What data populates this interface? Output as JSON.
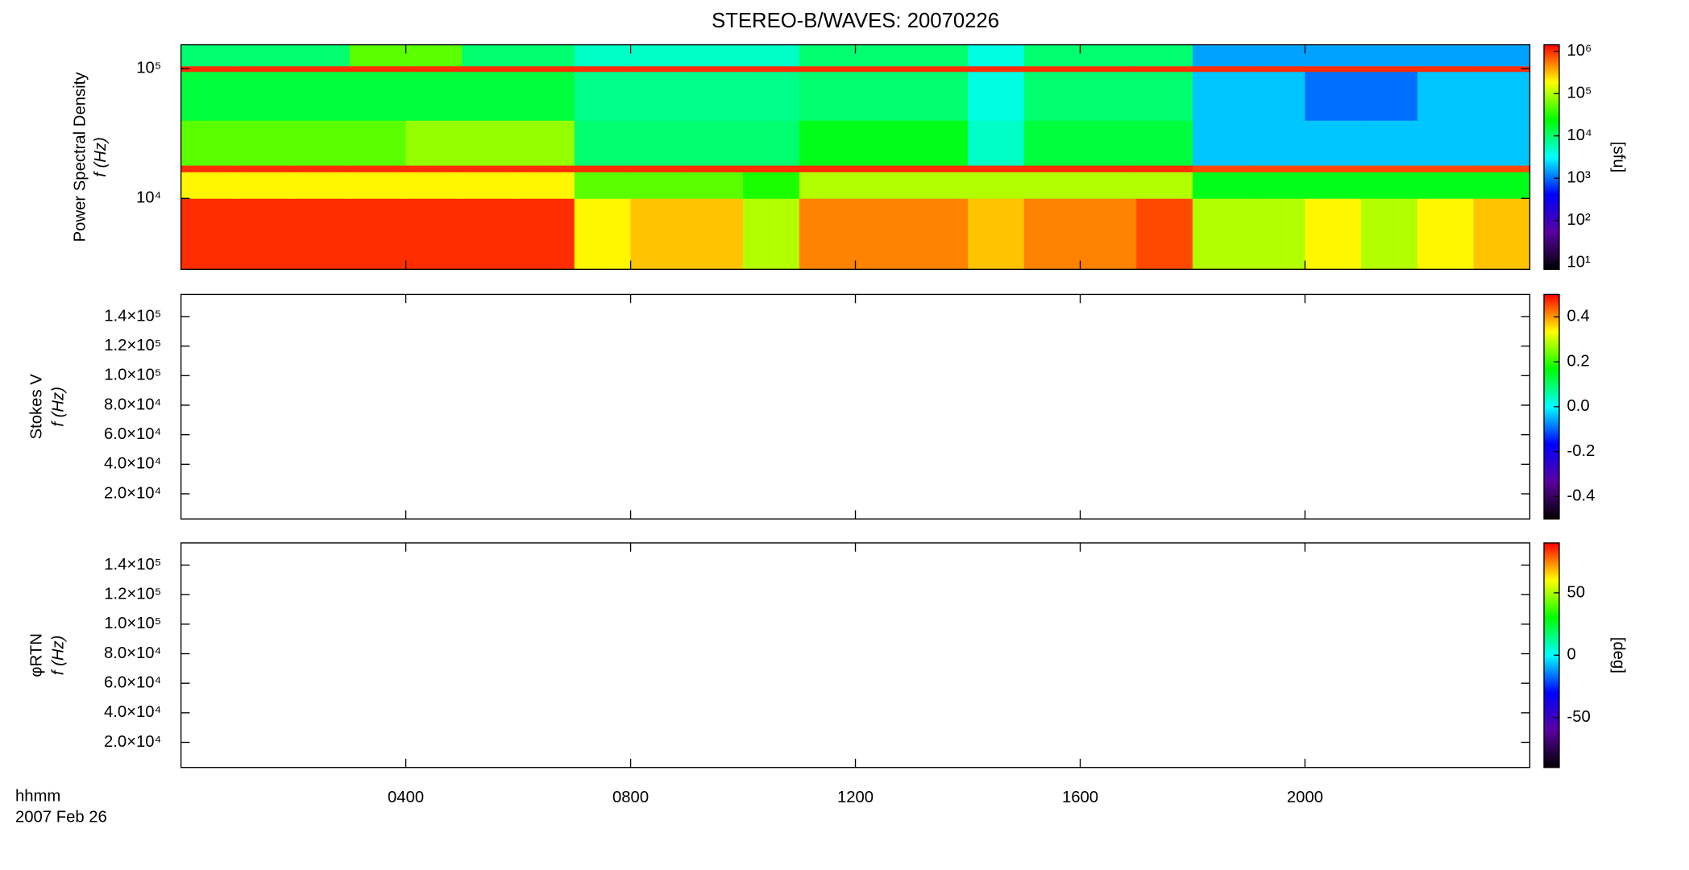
{
  "chart_data": [
    {
      "type": "heatmap",
      "title": "STEREO-B/WAVES: 20070226",
      "ylabel": [
        "Power Spectral Density",
        "f (Hz)"
      ],
      "xlim": [
        0,
        24
      ],
      "ylim": [
        2840,
        153000
      ],
      "ylog": true,
      "x": [
        0,
        1,
        2,
        3,
        4,
        5,
        6,
        7,
        8,
        9,
        10,
        11,
        12,
        13,
        14,
        15,
        16,
        17,
        18,
        19,
        20,
        21,
        22,
        23,
        24
      ],
      "ybins": [
        2840,
        10000,
        16000,
        18000,
        40000,
        95000,
        105000,
        153000
      ],
      "yticks": [
        {
          "value": 10000,
          "label": "10⁴"
        },
        {
          "value": 100000,
          "label": "10⁵"
        }
      ],
      "values": [
        [
          1000000,
          1000000,
          1000000,
          1000000,
          1000000,
          1000000,
          1000000,
          200000,
          300000,
          300000,
          100000,
          500000,
          500000,
          500000,
          300000,
          500000,
          500000,
          800000,
          100000,
          100000,
          200000,
          100000,
          200000,
          300000
        ],
        [
          200000,
          200000,
          200000,
          200000,
          200000,
          200000,
          200000,
          50000,
          50000,
          50000,
          30000,
          100000,
          100000,
          100000,
          100000,
          100000,
          100000,
          100000,
          20000,
          20000,
          20000,
          20000,
          20000,
          20000
        ],
        [
          1000000,
          1000000,
          1000000,
          1000000,
          1000000,
          1000000,
          1000000,
          1000000,
          1000000,
          1000000,
          1000000,
          1000000,
          1000000,
          1000000,
          1000000,
          1000000,
          1000000,
          1000000,
          800000,
          800000,
          800000,
          800000,
          800000,
          800000
        ],
        [
          50000,
          50000,
          50000,
          50000,
          80000,
          80000,
          80000,
          10000,
          10000,
          10000,
          10000,
          20000,
          20000,
          20000,
          5000,
          15000,
          15000,
          15000,
          2000,
          2000,
          2000,
          2000,
          2000,
          2000
        ],
        [
          15000,
          15000,
          15000,
          15000,
          15000,
          15000,
          15000,
          8000,
          8000,
          8000,
          8000,
          10000,
          10000,
          10000,
          4000,
          10000,
          10000,
          10000,
          2000,
          2000,
          1000,
          1000,
          2000,
          2000
        ],
        [
          1000000,
          1000000,
          1000000,
          1000000,
          1000000,
          1000000,
          1000000,
          1000000,
          1000000,
          1000000,
          1000000,
          1000000,
          1000000,
          1000000,
          1000000,
          1000000,
          1000000,
          1000000,
          1000000,
          1000000,
          1000000,
          1000000,
          1000000,
          1000000
        ],
        [
          10000,
          10000,
          10000,
          50000,
          50000,
          10000,
          10000,
          5000,
          5000,
          5000,
          5000,
          10000,
          10000,
          10000,
          4000,
          10000,
          10000,
          10000,
          1500,
          1500,
          1500,
          1500,
          1500,
          1500
        ]
      ],
      "colormap": [
        "#000000",
        "#5a00a0",
        "#0000ff",
        "#00ffff",
        "#00ff00",
        "#ffff00",
        "#ff0000"
      ],
      "clim": [
        7,
        1430000
      ],
      "clog": true,
      "cticks": [
        {
          "value": 10,
          "label": "10¹"
        },
        {
          "value": 100,
          "label": "10²"
        },
        {
          "value": 1000,
          "label": "10³"
        },
        {
          "value": 10000,
          "label": "10⁴"
        },
        {
          "value": 100000,
          "label": "10⁵"
        },
        {
          "value": 1000000,
          "label": "10⁶"
        }
      ],
      "clabel": "[sfu]"
    },
    {
      "type": "heatmap",
      "ylabel": [
        "Stokes V",
        "f (Hz)"
      ],
      "xlim": [
        0,
        24
      ],
      "ylim": [
        3000,
        155000
      ],
      "yticks": [
        {
          "value": 20000,
          "label": "2.0×10⁴"
        },
        {
          "value": 40000,
          "label": "4.0×10⁴"
        },
        {
          "value": 60000,
          "label": "6.0×10⁴"
        },
        {
          "value": 80000,
          "label": "8.0×10⁴"
        },
        {
          "value": 100000,
          "label": "1.0×10⁵"
        },
        {
          "value": 120000,
          "label": "1.2×10⁵"
        },
        {
          "value": 140000,
          "label": "1.4×10⁵"
        }
      ],
      "colormap": [
        "#000000",
        "#5a00a0",
        "#0000ff",
        "#00ffff",
        "#00ff00",
        "#ffff00",
        "#ff0000"
      ],
      "clim": [
        -0.5,
        0.5
      ],
      "cticks": [
        -0.4,
        -0.2,
        {
          "value": 0,
          "label": "0.0"
        },
        0.2,
        0.4
      ]
    },
    {
      "type": "heatmap",
      "ylabel": [
        "φRTN",
        "f (Hz)"
      ],
      "xlim": [
        0,
        24
      ],
      "ylim": [
        3000,
        155000
      ],
      "yticks": [
        {
          "value": 20000,
          "label": "2.0×10⁴"
        },
        {
          "value": 40000,
          "label": "4.0×10⁴"
        },
        {
          "value": 60000,
          "label": "6.0×10⁴"
        },
        {
          "value": 80000,
          "label": "8.0×10⁴"
        },
        {
          "value": 100000,
          "label": "1.0×10⁵"
        },
        {
          "value": 120000,
          "label": "1.2×10⁵"
        },
        {
          "value": 140000,
          "label": "1.4×10⁵"
        }
      ],
      "xticks": [
        {
          "value": 4,
          "label": "0400"
        },
        {
          "value": 8,
          "label": "0800"
        },
        {
          "value": 12,
          "label": "1200"
        },
        {
          "value": 16,
          "label": "1600"
        },
        {
          "value": 20,
          "label": "2000"
        }
      ],
      "xlabel": "hhmm",
      "date": "2007 Feb 26",
      "colormap": [
        "#000000",
        "#5a00a0",
        "#0000ff",
        "#00ffff",
        "#00ff00",
        "#ffff00",
        "#ff0000"
      ],
      "clim": [
        -90,
        90
      ],
      "cticks": [
        -50,
        0,
        50
      ],
      "clabel": "[deg]"
    }
  ]
}
